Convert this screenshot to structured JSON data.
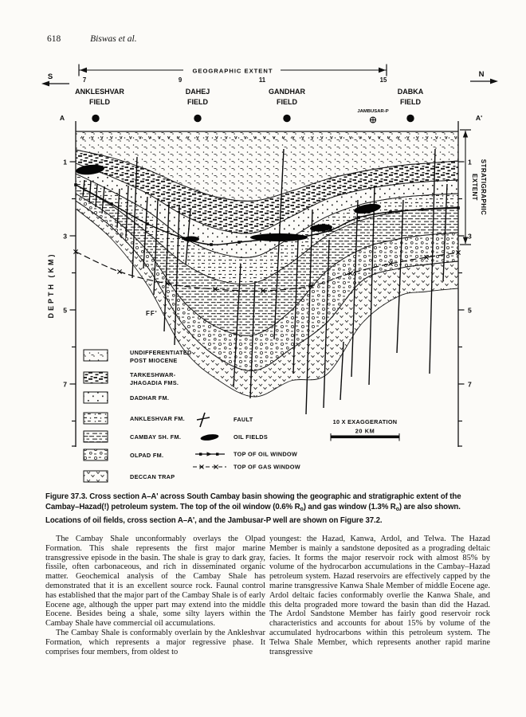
{
  "page": {
    "number": "618",
    "running_head": "Biswas et al."
  },
  "figure": {
    "top": {
      "geographic_extent": "GEOGRAPHIC EXTENT",
      "south": "S",
      "north": "N",
      "section_left": "A",
      "section_right": "A'",
      "fields": [
        {
          "number": "7",
          "name": "ANKLESHVAR",
          "word2": "FIELD"
        },
        {
          "number": "9",
          "name": "DAHEJ",
          "word2": "FIELD"
        },
        {
          "number": "11",
          "name": "GANDHAR",
          "word2": "FIELD"
        },
        {
          "number": "15",
          "name": "DABKA",
          "word2": "FIELD"
        }
      ],
      "well_label": "JAMBUSAR-P"
    },
    "axes": {
      "depth_label": "DEPTH (KM)",
      "depth_ticks": [
        "1",
        "3",
        "5",
        "7"
      ],
      "strat_line1": "STRATIGRAPHIC",
      "strat_line2": "EXTENT"
    },
    "annotations": {
      "ff": "FF'"
    },
    "legend": {
      "units": [
        {
          "line1": "UNDIFFERENTIATED",
          "line2": "POST MIOCENE"
        },
        {
          "line1": "TARKESHWAR-",
          "line2": "JHAGADIA FMS."
        },
        {
          "line1": "DADHAR FM.",
          "line2": ""
        },
        {
          "line1": "ANKLESHVAR FM.",
          "line2": ""
        },
        {
          "line1": "CAMBAY SH. FM.",
          "line2": ""
        },
        {
          "line1": "OLPAD FM.",
          "line2": ""
        },
        {
          "line1": "DECCAN TRAP",
          "line2": ""
        }
      ],
      "symbols": [
        "FAULT",
        "OIL FIELDS",
        "TOP OF OIL WINDOW",
        "TOP OF GAS WINDOW"
      ],
      "scale": {
        "exaggeration": "10 X  EXAGGERATION",
        "distance": "20 KM"
      }
    },
    "ink_color": "#141414"
  },
  "caption": {
    "line1": "Figure 37.3. Cross section A–A' across South Cambay basin showing the geographic and stratigraphic extent of the",
    "line2_pre": "Cambay–Hazad(!) petroleum system. The top of the oil window (0.6% R",
    "line2_sub1": "o",
    "line2_mid": ") and gas window (1.3% R",
    "line2_sub2": "o",
    "line2_post": ") are also shown.",
    "line3": "Locations of oil fields, cross section A–A', and the Jambusar-P well are shown on Figure 37.2."
  },
  "body": {
    "left": {
      "para1": "The Cambay Shale unconformably overlays the Olpad Formation. This shale represents the first major marine transgressive episode in the basin. The shale is gray to dark gray, fissile, often carbonaceous, and rich in disseminated organic matter. Geochemical analysis of the Cambay Shale has demonstrated that it is an excellent source rock. Faunal control has established that the major part of the Cambay Shale is of early Eocene age, although the upper part may extend into the middle Eocene. Besides being a shale, some silty layers within the Cambay Shale have commercial oil accumulations.",
      "para2": "The Cambay Shale is conformably overlain by the Ankleshvar Formation, which represents a major regressive phase. It comprises four members, from oldest to"
    },
    "right": {
      "para1": "youngest: the Hazad, Kanwa, Ardol, and Telwa. The Hazad Member is mainly a sandstone deposited as a prograding deltaic facies. It forms the major reservoir rock with almost 85% by volume of the hydrocarbon accumulations in the Cambay–Hazad petroleum system. Hazad reservoirs are effectively capped by the marine transgressive Kanwa Shale Member of middle Eocene age. Ardol deltaic facies conformably overlie the Kanwa Shale, and this delta prograded more toward the basin than did the Hazad. The Ardol Sandstone Member has fairly good reservoir rock characteristics and accounts for about 15% by volume of the accumulated hydrocarbons within this petroleum system. The Telwa Shale Member, which represents another rapid marine transgressive"
    }
  }
}
